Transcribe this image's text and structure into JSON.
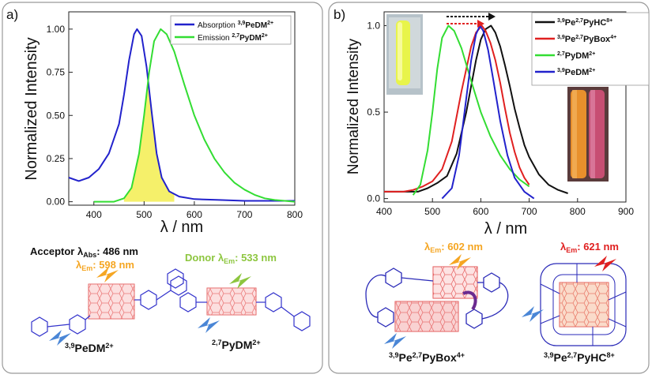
{
  "panel_a": {
    "label": "a)",
    "acceptor": {
      "prefix": "Acceptor λ",
      "sub": "Abs",
      "value": ": 486 nm"
    },
    "acceptor_em": {
      "prefix": "λ",
      "sub": "Em",
      "value": ": 598 nm"
    },
    "donor": {
      "prefix": "Donor λ",
      "sub": "Em",
      "value": ": 533 nm"
    },
    "mol1": {
      "sup1": "3,9",
      "name": "PeDM",
      "sup2": "2+"
    },
    "mol2": {
      "sup1": "2,7",
      "name": "PyDM",
      "sup2": "2+"
    }
  },
  "panel_b": {
    "label": "b)",
    "box_em": {
      "prefix": "λ",
      "sub": "Em",
      "value": ": 602 nm"
    },
    "hc_em": {
      "prefix": "λ",
      "sub": "Em",
      "value": ": 621 nm"
    },
    "mol_box": {
      "sup1": "3,9",
      "p1": "Pe",
      "sup2": "2,7",
      "p2": "PyBox",
      "sup3": "4+"
    },
    "mol_hc": {
      "sup1": "3,9",
      "p1": "Pe",
      "sup2": "2,7",
      "p2": "PyHC",
      "sup3": "8+"
    }
  },
  "colors": {
    "blue": "#2222cc",
    "green": "#33dd33",
    "red": "#e02020",
    "black": "#111111",
    "orange": "#f5a623",
    "lime": "#8dc63f"
  },
  "chart_data": [
    {
      "type": "line",
      "title": "",
      "xlabel": "λ / nm",
      "ylabel": "Normalized Intensity",
      "xlim": [
        350,
        800
      ],
      "ylim": [
        -0.02,
        1.1
      ],
      "xticks": [
        "400",
        "500",
        "600",
        "700",
        "800"
      ],
      "yticks": [
        "0.00",
        "0.25",
        "0.50",
        "0.75",
        "1.00"
      ],
      "legend_position": "top-right",
      "series": [
        {
          "name": "Absorption",
          "sup": "3,9",
          "bold": "PeDM",
          "sup2": "2+",
          "color": "#2222cc",
          "x": [
            350,
            370,
            390,
            410,
            430,
            450,
            460,
            470,
            480,
            486,
            495,
            505,
            515,
            525,
            535,
            550,
            570,
            600,
            650,
            700,
            800
          ],
          "y": [
            0.14,
            0.12,
            0.14,
            0.19,
            0.28,
            0.45,
            0.62,
            0.82,
            0.97,
            1.0,
            0.96,
            0.78,
            0.52,
            0.28,
            0.14,
            0.06,
            0.03,
            0.015,
            0.01,
            0.005,
            0.005
          ]
        },
        {
          "name": "Emission",
          "sup": "2,7",
          "bold": "PyDM",
          "sup2": "2+",
          "color": "#33dd33",
          "x": [
            400,
            440,
            460,
            475,
            490,
            500,
            510,
            520,
            533,
            545,
            560,
            580,
            600,
            620,
            640,
            660,
            680,
            700,
            720,
            740,
            760,
            780,
            800
          ],
          "y": [
            0.0,
            0.0,
            0.02,
            0.08,
            0.28,
            0.5,
            0.75,
            0.93,
            1.0,
            0.97,
            0.87,
            0.68,
            0.5,
            0.36,
            0.25,
            0.17,
            0.11,
            0.07,
            0.04,
            0.02,
            0.01,
            0.005,
            0.0
          ]
        }
      ]
    },
    {
      "type": "line",
      "title": "",
      "xlabel": "λ / nm",
      "ylabel": "Normalized Intensity",
      "xlim": [
        400,
        900
      ],
      "ylim": [
        -0.02,
        1.08
      ],
      "xticks": [
        "400",
        "500",
        "600",
        "700",
        "800",
        "900"
      ],
      "yticks": [
        "0.0",
        "0.5",
        "1.0"
      ],
      "legend_position": "top-right",
      "series": [
        {
          "name": "",
          "sup": "3,9",
          "bold": "Pe",
          "sup_mid": "2,7",
          "bold2": "PyHC",
          "sup2": "8+",
          "color": "#111111",
          "x": [
            400,
            450,
            470,
            490,
            510,
            530,
            550,
            570,
            590,
            600,
            610,
            621,
            630,
            640,
            650,
            660,
            670,
            680,
            690,
            700,
            720,
            740,
            760,
            780
          ],
          "y": [
            0.04,
            0.04,
            0.04,
            0.06,
            0.09,
            0.13,
            0.26,
            0.5,
            0.8,
            0.92,
            0.98,
            1.0,
            0.96,
            0.88,
            0.77,
            0.65,
            0.52,
            0.41,
            0.31,
            0.24,
            0.14,
            0.08,
            0.05,
            0.03
          ]
        },
        {
          "name": "",
          "sup": "3,9",
          "bold": "Pe",
          "sup_mid": "2,7",
          "bold2": "PyBox",
          "sup2": "4+",
          "color": "#e02020",
          "x": [
            400,
            440,
            460,
            480,
            500,
            520,
            540,
            560,
            580,
            590,
            602,
            610,
            620,
            630,
            640,
            650,
            660,
            670,
            680,
            690,
            700
          ],
          "y": [
            0.04,
            0.04,
            0.05,
            0.07,
            0.1,
            0.17,
            0.33,
            0.62,
            0.88,
            0.96,
            1.0,
            0.97,
            0.9,
            0.8,
            0.67,
            0.52,
            0.38,
            0.27,
            0.18,
            0.12,
            0.08
          ]
        },
        {
          "name": "",
          "sup": "2,7",
          "bold": "PyDM",
          "sup2": "2+",
          "color": "#33dd33",
          "x": [
            460,
            475,
            490,
            500,
            510,
            520,
            533,
            545,
            560,
            580,
            600,
            620,
            640,
            660,
            680,
            700
          ],
          "y": [
            0.02,
            0.08,
            0.28,
            0.5,
            0.75,
            0.93,
            1.0,
            0.97,
            0.87,
            0.68,
            0.5,
            0.36,
            0.25,
            0.17,
            0.11,
            0.07
          ]
        },
        {
          "name": "",
          "sup": "3,9",
          "bold": "PeDM",
          "sup2": "2+",
          "color": "#2222cc",
          "x": [
            520,
            540,
            555,
            570,
            580,
            590,
            598,
            605,
            615,
            625,
            640,
            655,
            670,
            690,
            710
          ],
          "y": [
            0.0,
            0.06,
            0.25,
            0.58,
            0.8,
            0.95,
            1.0,
            0.97,
            0.86,
            0.7,
            0.45,
            0.25,
            0.12,
            0.04,
            0.0
          ]
        }
      ]
    }
  ]
}
